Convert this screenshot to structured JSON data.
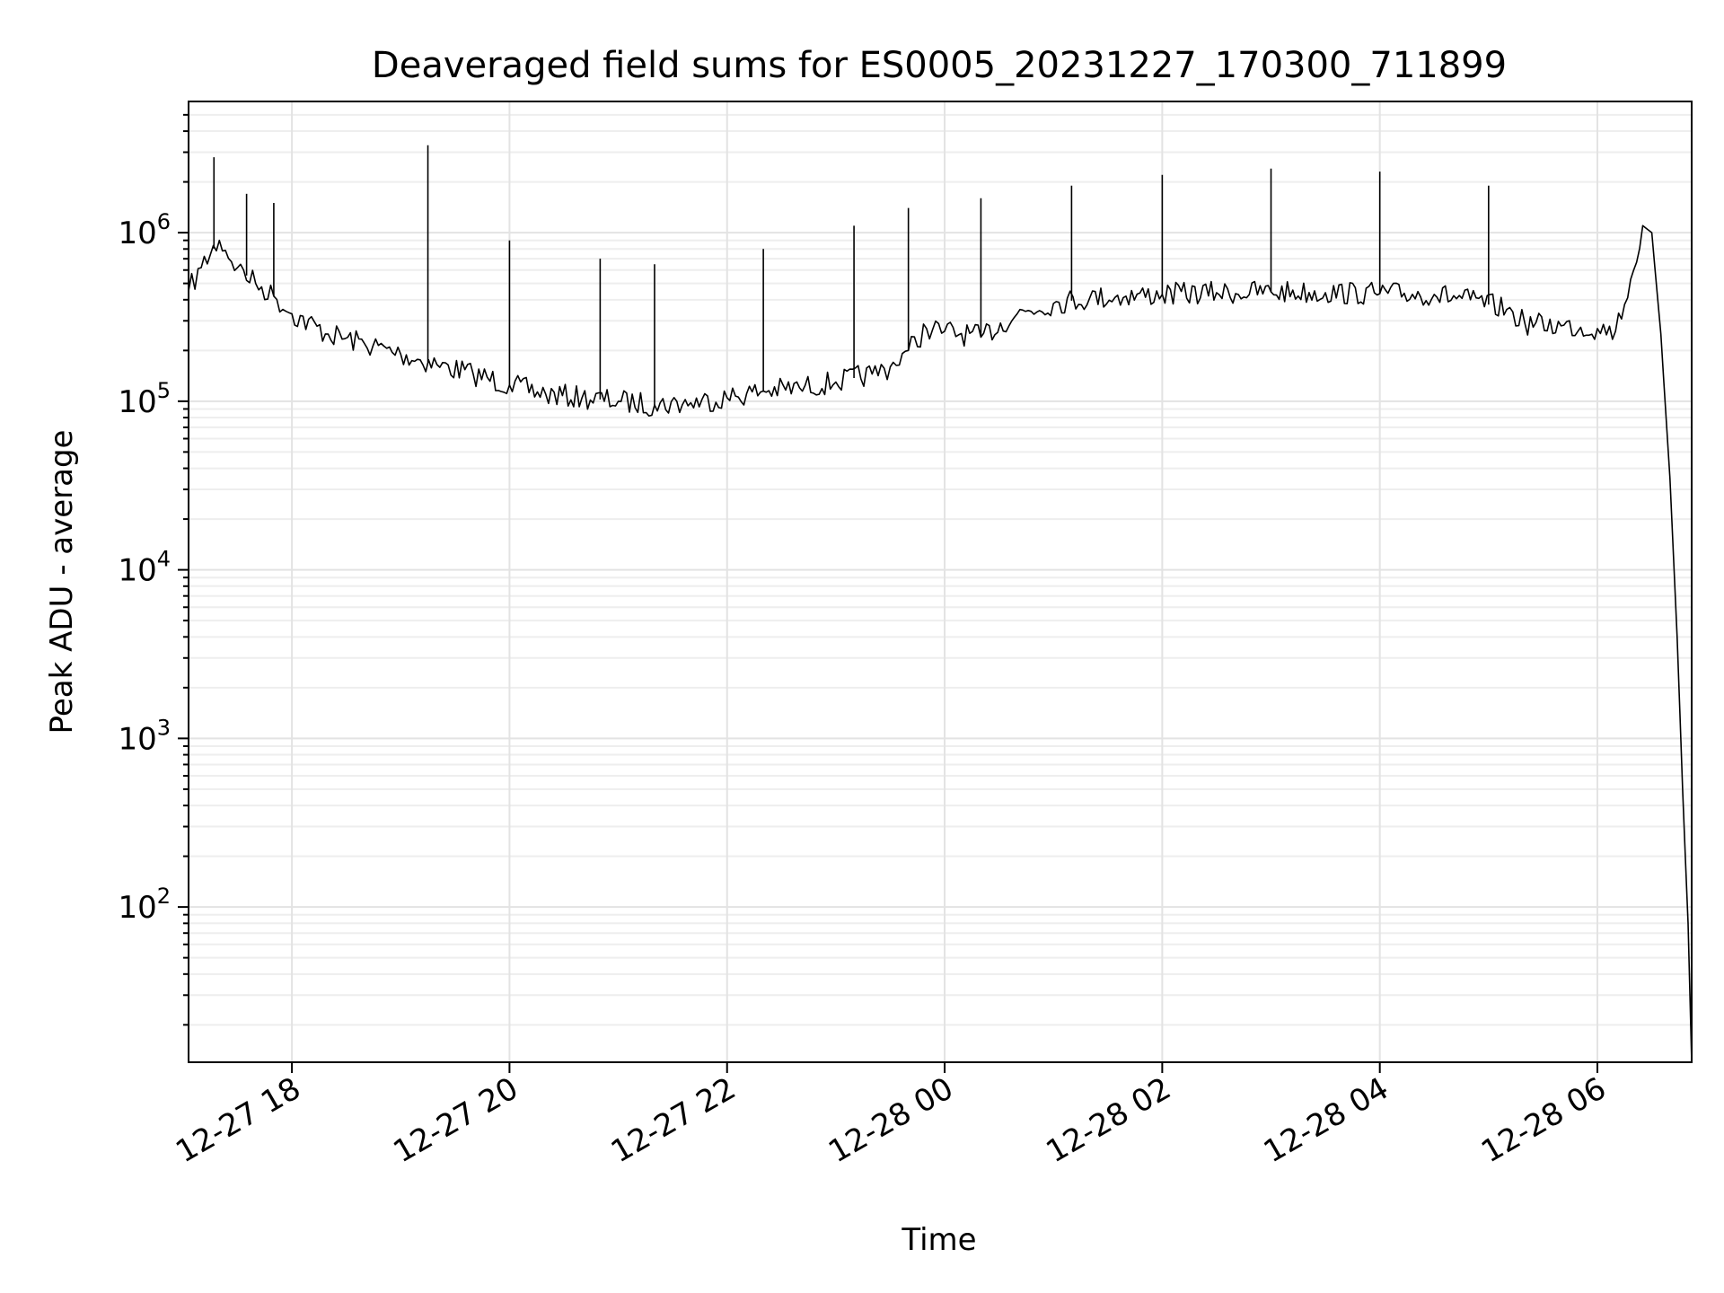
{
  "chart_data": {
    "type": "line",
    "title": "Deaveraged field sums for ES0005_20231227_170300_711899",
    "xlabel": "Time",
    "ylabel": "Peak ADU - average",
    "yscale": "log",
    "xlim": [
      "2023-12-27 17:03",
      "2023-12-28 06:52"
    ],
    "ylim": [
      12,
      6000000
    ],
    "grid": true,
    "x_ticks": [
      {
        "label": "12-27 18",
        "value": "2023-12-27 18:00"
      },
      {
        "label": "12-27 20",
        "value": "2023-12-27 20:00"
      },
      {
        "label": "12-27 22",
        "value": "2023-12-27 22:00"
      },
      {
        "label": "12-28 00",
        "value": "2023-12-28 00:00"
      },
      {
        "label": "12-28 02",
        "value": "2023-12-28 02:00"
      },
      {
        "label": "12-28 04",
        "value": "2023-12-28 04:00"
      },
      {
        "label": "12-28 06",
        "value": "2023-12-28 06:00"
      }
    ],
    "y_ticks": [
      {
        "base": "10",
        "exp": "2",
        "value": 100
      },
      {
        "base": "10",
        "exp": "3",
        "value": 1000
      },
      {
        "base": "10",
        "exp": "4",
        "value": 10000
      },
      {
        "base": "10",
        "exp": "5",
        "value": 100000
      },
      {
        "base": "10",
        "exp": "6",
        "value": 1000000
      }
    ],
    "series": [
      {
        "color": "#000000",
        "x": [
          "2023-12-27 17:03",
          "2023-12-27 17:10",
          "2023-12-27 17:20",
          "2023-12-27 17:30",
          "2023-12-27 17:40",
          "2023-12-27 17:50",
          "2023-12-27 18:00",
          "2023-12-27 18:20",
          "2023-12-27 18:40",
          "2023-12-27 19:00",
          "2023-12-27 19:20",
          "2023-12-27 19:40",
          "2023-12-27 20:00",
          "2023-12-27 20:20",
          "2023-12-27 20:40",
          "2023-12-27 21:00",
          "2023-12-27 21:20",
          "2023-12-27 21:40",
          "2023-12-27 22:00",
          "2023-12-27 22:20",
          "2023-12-27 22:40",
          "2023-12-27 23:00",
          "2023-12-27 23:20",
          "2023-12-27 23:30",
          "2023-12-27 23:40",
          "2023-12-27 23:50",
          "2023-12-28 00:00",
          "2023-12-28 00:20",
          "2023-12-28 00:40",
          "2023-12-28 01:00",
          "2023-12-28 01:20",
          "2023-12-28 01:40",
          "2023-12-28 02:00",
          "2023-12-28 02:30",
          "2023-12-28 03:00",
          "2023-12-28 03:30",
          "2023-12-28 04:00",
          "2023-12-28 04:30",
          "2023-12-28 04:50",
          "2023-12-28 05:10",
          "2023-12-28 05:20",
          "2023-12-28 05:40",
          "2023-12-28 06:00",
          "2023-12-28 06:10",
          "2023-12-28 06:20",
          "2023-12-28 06:25",
          "2023-12-28 06:30",
          "2023-12-28 06:35",
          "2023-12-28 06:40",
          "2023-12-28 06:44",
          "2023-12-28 06:47",
          "2023-12-28 06:50",
          "2023-12-28 06:52"
        ],
        "y": [
          450000,
          620000,
          900000,
          620000,
          500000,
          420000,
          330000,
          250000,
          220000,
          190000,
          165000,
          145000,
          125000,
          110000,
          105000,
          100000,
          95000,
          98000,
          105000,
          115000,
          120000,
          130000,
          145000,
          160000,
          200000,
          270000,
          260000,
          240000,
          330000,
          380000,
          410000,
          420000,
          430000,
          440000,
          445000,
          440000,
          435000,
          430000,
          400000,
          350000,
          290000,
          280000,
          270000,
          260000,
          600000,
          1100000,
          1000000,
          250000,
          35000,
          4000,
          500,
          80,
          12
        ],
        "spikes": [
          {
            "x": "2023-12-27 17:17",
            "y": 2800000
          },
          {
            "x": "2023-12-27 17:35",
            "y": 1700000
          },
          {
            "x": "2023-12-27 17:50",
            "y": 1500000
          },
          {
            "x": "2023-12-27 19:15",
            "y": 3300000
          },
          {
            "x": "2023-12-27 20:00",
            "y": 900000
          },
          {
            "x": "2023-12-27 20:50",
            "y": 700000
          },
          {
            "x": "2023-12-27 21:20",
            "y": 650000
          },
          {
            "x": "2023-12-27 22:20",
            "y": 800000
          },
          {
            "x": "2023-12-27 23:10",
            "y": 1100000
          },
          {
            "x": "2023-12-27 23:40",
            "y": 1400000
          },
          {
            "x": "2023-12-28 00:20",
            "y": 1600000
          },
          {
            "x": "2023-12-28 01:10",
            "y": 1900000
          },
          {
            "x": "2023-12-28 02:00",
            "y": 2200000
          },
          {
            "x": "2023-12-28 03:00",
            "y": 2400000
          },
          {
            "x": "2023-12-28 04:00",
            "y": 2300000
          },
          {
            "x": "2023-12-28 05:00",
            "y": 1900000
          }
        ]
      }
    ]
  }
}
